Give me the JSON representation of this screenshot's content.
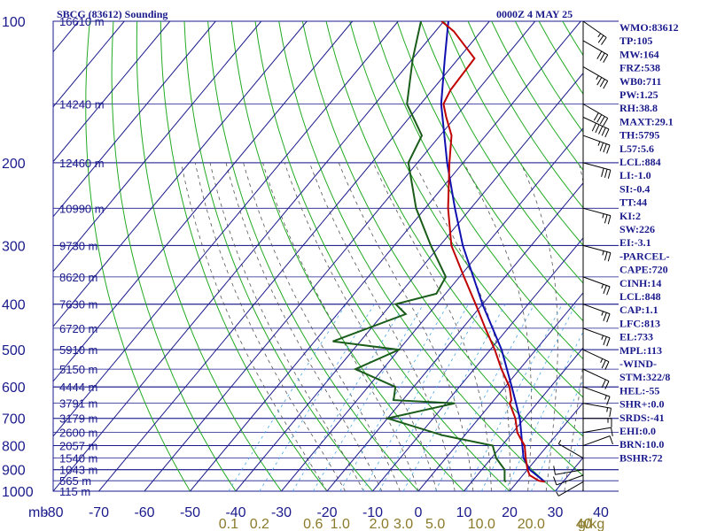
{
  "header": {
    "station": "SBCG (83612) Sounding",
    "time": "0000Z  4 MAY 25"
  },
  "pressure_unit_label": "mb",
  "mixing_ratio_unit_label": "g/kg",
  "indices": [
    "WMO:83612",
    "TP:105",
    "MW:164",
    "FRZ:538",
    "WB0:711",
    "PW:1.25",
    "RH:38.8",
    "MAXT:29.1",
    "TH:5795",
    "L57:5.6",
    "LCL:884",
    "LI:-1.0",
    "SI:-0.4",
    "TT:44",
    "KI:2",
    "SW:226",
    "EI:-3.1",
    "-PARCEL-",
    "CAPE:720",
    "CINH:14",
    "LCL:848",
    "CAP:1.1",
    "LFC:813",
    "EL:733",
    "MPL:113",
    "-WIND-",
    "STM:322/8",
    "HEL:-55",
    "SHR+:0.0",
    "SRDS:-41",
    "EHI:0.0",
    "BRN:10.0",
    "BSHR:72"
  ],
  "colors": {
    "frame": "#1a1a8c",
    "isotherm": "#1a1a8c",
    "dry_adiabat": "#22aa22",
    "moist_adiabat": "#555555",
    "mixing_ratio": "#4aa8e8",
    "temperature": "#c00000",
    "dewpoint": "#1a5c1a",
    "parcel": "#1010b0",
    "wind": "#000000"
  },
  "chart_data": {
    "type": "skew-t",
    "pressure_levels_mb": [
      100,
      200,
      300,
      400,
      500,
      600,
      700,
      800,
      900,
      1000
    ],
    "pressure_tick_labels": [
      "100",
      "200",
      "300",
      "400",
      "500",
      "600",
      "700",
      "800",
      "900",
      "1000"
    ],
    "height_labels": [
      {
        "p": 100,
        "label": "16610 m"
      },
      {
        "p": 150,
        "label": "14240 m"
      },
      {
        "p": 200,
        "label": "12460 m"
      },
      {
        "p": 250,
        "label": "10990 m"
      },
      {
        "p": 300,
        "label": "9730 m"
      },
      {
        "p": 350,
        "label": "8620 m"
      },
      {
        "p": 400,
        "label": "7630 m"
      },
      {
        "p": 450,
        "label": "6720 m"
      },
      {
        "p": 500,
        "label": "5910 m"
      },
      {
        "p": 550,
        "label": "5150 m"
      },
      {
        "p": 600,
        "label": "4444 m"
      },
      {
        "p": 650,
        "label": "3791 m"
      },
      {
        "p": 700,
        "label": "3179 m"
      },
      {
        "p": 750,
        "label": "2600 m"
      },
      {
        "p": 800,
        "label": "2057 m"
      },
      {
        "p": 850,
        "label": "1540 m"
      },
      {
        "p": 900,
        "label": "1043 m"
      },
      {
        "p": 950,
        "label": "565 m"
      },
      {
        "p": 1000,
        "label": "115 m"
      }
    ],
    "temperature_ticks_c": [
      -80,
      -70,
      -60,
      -50,
      -40,
      -30,
      -20,
      -10,
      0,
      10,
      20,
      30,
      40
    ],
    "temperature_tick_labels": [
      "-80",
      "-70",
      "-60",
      "-50",
      "-40",
      "-30",
      "-20",
      "-10",
      "0",
      "10",
      "20",
      "30",
      "40"
    ],
    "mixing_ratio_labels": [
      {
        "w": 0.1,
        "label": "0.1"
      },
      {
        "w": 0.2,
        "label": "0.2"
      },
      {
        "w": 0.6,
        "label": "0.6"
      },
      {
        "w": 1.0,
        "label": "1.0"
      },
      {
        "w": 2.0,
        "label": "2.0"
      },
      {
        "w": 3.0,
        "label": "3.0"
      },
      {
        "w": 5.0,
        "label": "5.0"
      },
      {
        "w": 10.0,
        "label": "10.0"
      },
      {
        "w": 20.0,
        "label": "20.0"
      },
      {
        "w": 40.0,
        "label": "40"
      }
    ],
    "temperature_profile": [
      {
        "p": 955,
        "t": 26.0
      },
      {
        "p": 950,
        "t": 24.5
      },
      {
        "p": 925,
        "t": 21.5
      },
      {
        "p": 900,
        "t": 20.0
      },
      {
        "p": 850,
        "t": 17.5
      },
      {
        "p": 800,
        "t": 15.0
      },
      {
        "p": 775,
        "t": 13.0
      },
      {
        "p": 750,
        "t": 11.0
      },
      {
        "p": 700,
        "t": 8.0
      },
      {
        "p": 650,
        "t": 4.0
      },
      {
        "p": 640,
        "t": 3.8
      },
      {
        "p": 600,
        "t": 1.0
      },
      {
        "p": 550,
        "t": -4.0
      },
      {
        "p": 500,
        "t": -9.0
      },
      {
        "p": 450,
        "t": -15.0
      },
      {
        "p": 400,
        "t": -21.5
      },
      {
        "p": 350,
        "t": -29.0
      },
      {
        "p": 300,
        "t": -37.5
      },
      {
        "p": 250,
        "t": -45.0
      },
      {
        "p": 200,
        "t": -53.0
      },
      {
        "p": 175,
        "t": -57.5
      },
      {
        "p": 160,
        "t": -62.0
      },
      {
        "p": 150,
        "t": -65.0
      },
      {
        "p": 140,
        "t": -66.0
      },
      {
        "p": 120,
        "t": -66.5
      },
      {
        "p": 105,
        "t": -76.0
      },
      {
        "p": 100,
        "t": -80.5
      }
    ],
    "dewpoint_profile": [
      {
        "p": 955,
        "t": 17.5
      },
      {
        "p": 950,
        "t": 17.0
      },
      {
        "p": 900,
        "t": 15.0
      },
      {
        "p": 850,
        "t": 11.0
      },
      {
        "p": 800,
        "t": 8.0
      },
      {
        "p": 760,
        "t": -5.0
      },
      {
        "p": 700,
        "t": -20.0
      },
      {
        "p": 650,
        "t": -8.0
      },
      {
        "p": 640,
        "t": -22.0
      },
      {
        "p": 600,
        "t": -24.0
      },
      {
        "p": 550,
        "t": -36.0
      },
      {
        "p": 500,
        "t": -30.0
      },
      {
        "p": 480,
        "t": -46.0
      },
      {
        "p": 420,
        "t": -35.0
      },
      {
        "p": 400,
        "t": -39.0
      },
      {
        "p": 380,
        "t": -32.0
      },
      {
        "p": 350,
        "t": -33.0
      },
      {
        "p": 300,
        "t": -42.0
      },
      {
        "p": 250,
        "t": -52.0
      },
      {
        "p": 200,
        "t": -62.0
      },
      {
        "p": 175,
        "t": -64.0
      },
      {
        "p": 150,
        "t": -73.0
      },
      {
        "p": 120,
        "t": -80.0
      },
      {
        "p": 100,
        "t": -85.0
      }
    ],
    "parcel_profile": [
      {
        "p": 955,
        "t": 26.0
      },
      {
        "p": 900,
        "t": 20.5
      },
      {
        "p": 850,
        "t": 17.0
      },
      {
        "p": 800,
        "t": 14.5
      },
      {
        "p": 700,
        "t": 9.0
      },
      {
        "p": 600,
        "t": 1.5
      },
      {
        "p": 500,
        "t": -7.5
      },
      {
        "p": 400,
        "t": -20.0
      },
      {
        "p": 300,
        "t": -35.0
      },
      {
        "p": 250,
        "t": -43.5
      },
      {
        "p": 200,
        "t": -53.5
      },
      {
        "p": 150,
        "t": -65.5
      },
      {
        "p": 120,
        "t": -73.0
      },
      {
        "p": 100,
        "t": -79.0
      }
    ],
    "wind_barbs": [
      {
        "p": 955,
        "dir": 60,
        "spd": 5
      },
      {
        "p": 925,
        "dir": 70,
        "spd": 10
      },
      {
        "p": 900,
        "dir": 80,
        "spd": 10
      },
      {
        "p": 850,
        "dir": 120,
        "spd": 5
      },
      {
        "p": 800,
        "dir": 250,
        "spd": 10
      },
      {
        "p": 750,
        "dir": 260,
        "spd": 10
      },
      {
        "p": 700,
        "dir": 270,
        "spd": 15
      },
      {
        "p": 650,
        "dir": 280,
        "spd": 15
      },
      {
        "p": 600,
        "dir": 290,
        "spd": 15
      },
      {
        "p": 550,
        "dir": 295,
        "spd": 20
      },
      {
        "p": 500,
        "dir": 295,
        "spd": 25
      },
      {
        "p": 450,
        "dir": 290,
        "spd": 25
      },
      {
        "p": 400,
        "dir": 290,
        "spd": 25
      },
      {
        "p": 350,
        "dir": 290,
        "spd": 25
      },
      {
        "p": 300,
        "dir": 285,
        "spd": 25
      },
      {
        "p": 250,
        "dir": 285,
        "spd": 25
      },
      {
        "p": 200,
        "dir": 285,
        "spd": 30
      },
      {
        "p": 175,
        "dir": 290,
        "spd": 35
      },
      {
        "p": 160,
        "dir": 295,
        "spd": 50
      },
      {
        "p": 150,
        "dir": 300,
        "spd": 40
      },
      {
        "p": 125,
        "dir": 300,
        "spd": 35
      },
      {
        "p": 110,
        "dir": 300,
        "spd": 30
      },
      {
        "p": 100,
        "dir": 305,
        "spd": 25
      }
    ]
  }
}
